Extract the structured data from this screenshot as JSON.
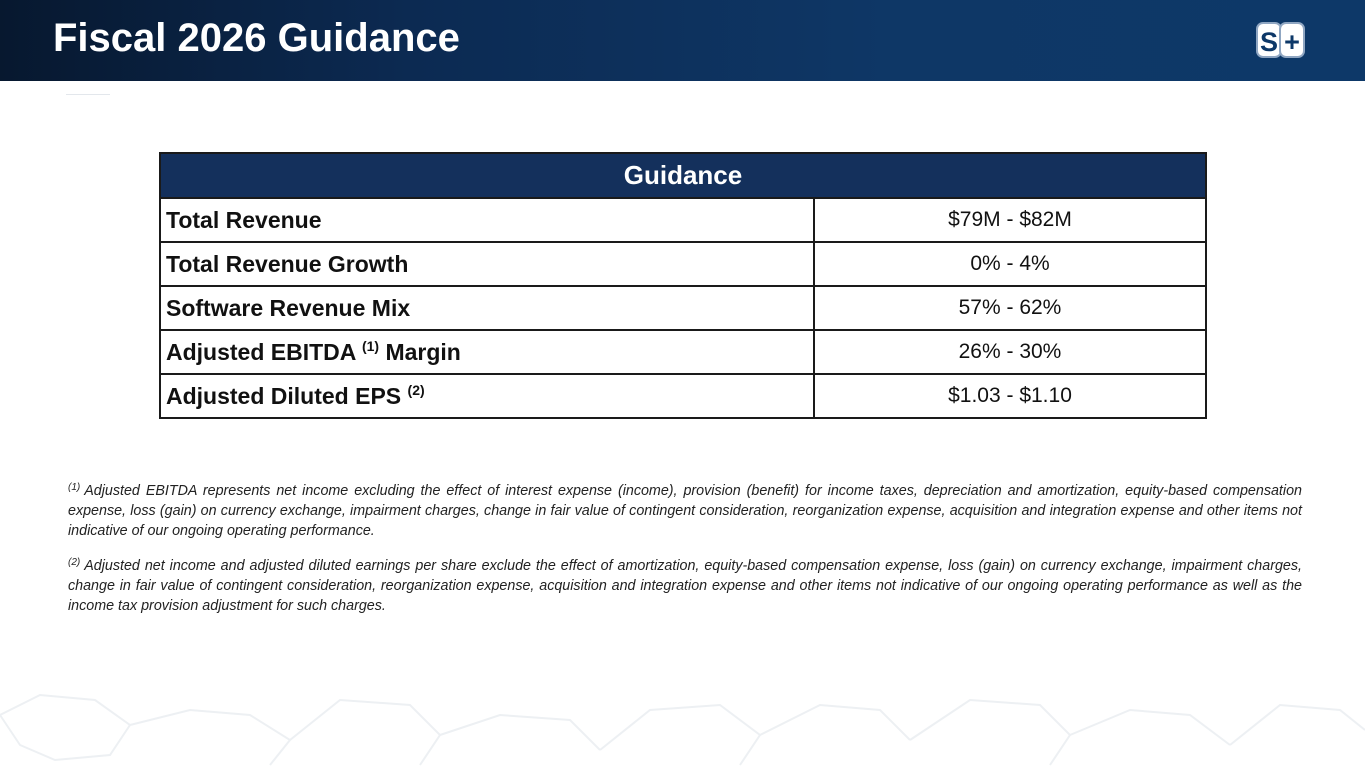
{
  "header": {
    "title": "Fiscal 2026 Guidance",
    "logo": {
      "letter1": "S",
      "letter2": "+",
      "icon": "company-logo-icon"
    }
  },
  "table": {
    "heading": "Guidance",
    "rows": [
      {
        "label": "Total Revenue",
        "footnote": null,
        "suffix": "",
        "value": "$79M - $82M"
      },
      {
        "label": "Total Revenue Growth",
        "footnote": null,
        "suffix": "",
        "value": "0% - 4%"
      },
      {
        "label": "Software Revenue Mix",
        "footnote": null,
        "suffix": "",
        "value": "57% - 62%"
      },
      {
        "label": "Adjusted EBITDA",
        "footnote": "(1)",
        "suffix": "Margin",
        "value": "26% - 30%"
      },
      {
        "label": "Adjusted Diluted EPS",
        "footnote": "(2)",
        "suffix": "",
        "value": "$1.03 - $1.10"
      }
    ]
  },
  "footnotes": [
    {
      "marker": "(1)",
      "text": "Adjusted EBITDA represents net income excluding the effect of interest expense (income), provision (benefit) for income taxes, depreciation and amortization, equity-based compensation expense, loss (gain) on currency exchange, impairment charges, change in fair value of contingent consideration, reorganization expense, acquisition and integration expense and other items not indicative of our ongoing operating performance."
    },
    {
      "marker": "(2)",
      "text": "Adjusted net income and adjusted diluted earnings per share exclude the effect of amortization, equity-based compensation expense, loss (gain) on currency exchange, impairment charges, change in fair value of contingent consideration, reorganization expense, acquisition and integration expense and other items not indicative of our ongoing operating performance as well as the income tax provision adjustment for such charges."
    }
  ],
  "colors": {
    "header_dark": "#07182f",
    "header_blue": "#0d3868",
    "table_header": "#14305c"
  }
}
